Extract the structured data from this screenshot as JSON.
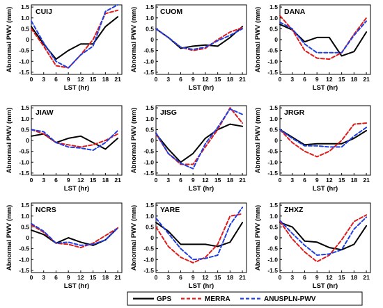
{
  "chart_data": {
    "type": "line",
    "x": [
      0,
      3,
      6,
      9,
      12,
      15,
      18,
      21
    ],
    "xticks": [
      0,
      3,
      6,
      9,
      12,
      15,
      18,
      21
    ],
    "xlim": [
      0,
      22
    ],
    "yticks": [
      -1.5,
      -1,
      -0.5,
      0,
      0.5,
      1,
      1.5
    ],
    "ytick_labels": [
      "-1.5",
      "-1.0",
      "-0.5",
      "0",
      "0.5",
      "1.0",
      "1.5"
    ],
    "ylim": [
      -1.6,
      1.6
    ],
    "xlabel": "LST (hr)",
    "ylabel": "Abnormal PWV (mm)",
    "legend": {
      "placement": "bottom",
      "entries": [
        {
          "name": "GPS",
          "color": "#000000",
          "dash": "solid"
        },
        {
          "name": "MERRA",
          "color": "#e01b1b",
          "dash": "dashed"
        },
        {
          "name": "ANUSPLN-PWV",
          "color": "#1f3fe0",
          "dash": "dashed"
        }
      ]
    },
    "panels": [
      {
        "title": "CUIJ",
        "series": [
          {
            "name": "GPS",
            "values": [
              0.6,
              -0.2,
              -0.9,
              -0.5,
              -0.2,
              -0.2,
              0.6,
              1.05
            ]
          },
          {
            "name": "MERRA",
            "values": [
              0.5,
              -0.3,
              -1.2,
              -1.3,
              -0.7,
              0.0,
              1.2,
              1.35
            ]
          },
          {
            "name": "ANUSPLN-PWV",
            "values": [
              0.85,
              -0.15,
              -1.0,
              -1.3,
              -0.7,
              -0.3,
              1.3,
              1.6
            ]
          }
        ]
      },
      {
        "title": "CUOM",
        "series": [
          {
            "name": "GPS",
            "values": [
              0.5,
              0.1,
              -0.4,
              -0.3,
              -0.25,
              -0.3,
              0.1,
              0.6
            ]
          },
          {
            "name": "MERRA",
            "values": [
              0.5,
              0.1,
              -0.35,
              -0.5,
              -0.4,
              0.0,
              0.35,
              0.55
            ]
          },
          {
            "name": "ANUSPLN-PWV",
            "values": [
              0.5,
              0.1,
              -0.35,
              -0.45,
              -0.35,
              -0.05,
              0.2,
              0.5
            ]
          }
        ]
      },
      {
        "title": "DANA",
        "series": [
          {
            "name": "GPS",
            "values": [
              0.7,
              0.45,
              -0.1,
              0.1,
              0.1,
              -0.75,
              -0.55,
              0.35
            ]
          },
          {
            "name": "MERRA",
            "values": [
              1.1,
              0.45,
              -0.5,
              -0.85,
              -0.9,
              -0.6,
              0.25,
              1.0
            ]
          },
          {
            "name": "ANUSPLN-PWV",
            "values": [
              0.8,
              0.5,
              -0.2,
              -0.6,
              -0.6,
              -0.6,
              0.2,
              0.85
            ]
          }
        ]
      },
      {
        "title": "JIAW",
        "series": [
          {
            "name": "GPS",
            "values": [
              0.2,
              0.3,
              -0.1,
              0.1,
              0.2,
              -0.1,
              -0.4,
              0.1
            ]
          },
          {
            "name": "MERRA",
            "values": [
              0.5,
              0.3,
              -0.1,
              -0.2,
              -0.3,
              -0.2,
              0.0,
              0.3
            ]
          },
          {
            "name": "ANUSPLN-PWV",
            "values": [
              0.5,
              0.4,
              -0.1,
              -0.3,
              -0.35,
              -0.45,
              -0.1,
              0.45
            ]
          }
        ]
      },
      {
        "title": "JISG",
        "series": [
          {
            "name": "GPS",
            "values": [
              0.3,
              -0.4,
              -1.0,
              -0.6,
              0.1,
              0.5,
              0.75,
              0.65
            ]
          },
          {
            "name": "MERRA",
            "values": [
              0.3,
              -0.6,
              -1.1,
              -1.1,
              -0.3,
              0.5,
              1.5,
              0.8
            ]
          },
          {
            "name": "ANUSPLN-PWV",
            "values": [
              0.35,
              -0.6,
              -1.05,
              -1.3,
              -0.15,
              0.6,
              1.45,
              1.2
            ]
          }
        ]
      },
      {
        "title": "JRGR",
        "series": [
          {
            "name": "GPS",
            "values": [
              0.5,
              0.15,
              -0.2,
              -0.15,
              -0.15,
              -0.15,
              0.1,
              0.45
            ]
          },
          {
            "name": "MERRA",
            "values": [
              0.5,
              -0.1,
              -0.5,
              -0.75,
              -0.5,
              0.0,
              0.75,
              0.8
            ]
          },
          {
            "name": "ANUSPLN-PWV",
            "values": [
              0.5,
              0.1,
              -0.25,
              -0.25,
              -0.3,
              -0.3,
              0.2,
              0.6
            ]
          }
        ]
      },
      {
        "title": "NCRS",
        "series": [
          {
            "name": "GPS",
            "values": [
              0.35,
              0.15,
              -0.25,
              0.0,
              -0.2,
              -0.35,
              -0.1,
              0.45
            ]
          },
          {
            "name": "MERRA",
            "values": [
              0.6,
              0.25,
              -0.25,
              -0.3,
              -0.45,
              -0.25,
              0.1,
              0.45
            ]
          },
          {
            "name": "ANUSPLN-PWV",
            "values": [
              0.65,
              0.3,
              -0.25,
              -0.2,
              -0.35,
              -0.3,
              -0.1,
              0.45
            ]
          }
        ]
      },
      {
        "title": "YARE",
        "series": [
          {
            "name": "GPS",
            "values": [
              0.7,
              0.3,
              -0.3,
              -0.3,
              -0.3,
              -0.4,
              -0.2,
              0.7
            ]
          },
          {
            "name": "MERRA",
            "values": [
              0.5,
              -0.4,
              -0.9,
              -1.15,
              -0.9,
              -0.3,
              1.0,
              1.1
            ]
          },
          {
            "name": "ANUSPLN-PWV",
            "values": [
              0.9,
              0.2,
              -0.5,
              -1.0,
              -0.95,
              -0.8,
              0.6,
              1.4
            ]
          }
        ]
      },
      {
        "title": "ZHXZ",
        "series": [
          {
            "name": "GPS",
            "values": [
              0.7,
              0.5,
              -0.15,
              -0.2,
              -0.45,
              -0.55,
              -0.3,
              0.55
            ]
          },
          {
            "name": "MERRA",
            "values": [
              0.75,
              -0.05,
              -0.65,
              -1.1,
              -0.8,
              -0.1,
              0.75,
              1.05
            ]
          },
          {
            "name": "ANUSPLN-PWV",
            "values": [
              0.8,
              0.2,
              -0.35,
              -0.8,
              -0.75,
              -0.55,
              0.4,
              0.95
            ]
          }
        ]
      }
    ]
  }
}
